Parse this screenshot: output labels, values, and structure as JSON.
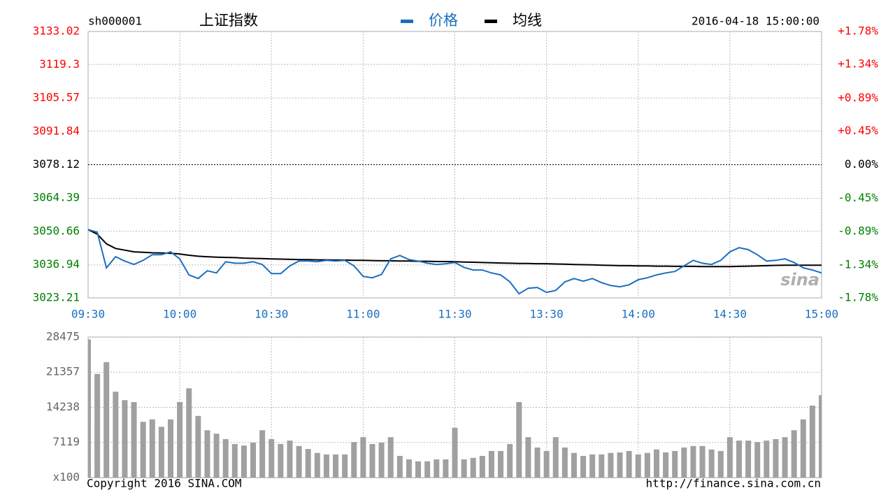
{
  "header": {
    "code": "sh000001",
    "name": "上证指数",
    "datetime": "2016-04-18 15:00:00"
  },
  "chart_data": [
    {
      "type": "line",
      "x": [
        0,
        3,
        6,
        9,
        12,
        15,
        18,
        21,
        24,
        27,
        30,
        33,
        36,
        39,
        42,
        45,
        48,
        51,
        54,
        57,
        60,
        63,
        66,
        69,
        72,
        75,
        78,
        81,
        84,
        87,
        90,
        93,
        96,
        99,
        102,
        105,
        108,
        111,
        114,
        117,
        120,
        123,
        126,
        129,
        132,
        135,
        138,
        141,
        144,
        147,
        150,
        153,
        156,
        159,
        162,
        165,
        168,
        171,
        174,
        177,
        180,
        183,
        186,
        189,
        192,
        195,
        198,
        201,
        204,
        207,
        210,
        213,
        216,
        219,
        222,
        225,
        228,
        231,
        234,
        237,
        240
      ],
      "xlim": [
        0,
        240
      ],
      "xticks": [
        {
          "value": 0,
          "label": "09:30"
        },
        {
          "value": 30,
          "label": "10:00"
        },
        {
          "value": 60,
          "label": "10:30"
        },
        {
          "value": 90,
          "label": "11:00"
        },
        {
          "value": 120,
          "label": "11:30"
        },
        {
          "value": 150,
          "label": "13:30"
        },
        {
          "value": 180,
          "label": "14:00"
        },
        {
          "value": 210,
          "label": "14:30"
        },
        {
          "value": 240,
          "label": "15:00"
        }
      ],
      "ylim": [
        3023.21,
        3133.02
      ],
      "yticks": [
        3023.21,
        3036.94,
        3050.66,
        3064.39,
        3078.12,
        3091.84,
        3105.57,
        3119.3,
        3133.02
      ],
      "y2lim": [
        -1.78,
        1.78
      ],
      "y2ticks": [
        {
          "value": -1.78,
          "label": "-1.78%"
        },
        {
          "value": -1.34,
          "label": "-1.34%"
        },
        {
          "value": -0.89,
          "label": "-0.89%"
        },
        {
          "value": -0.45,
          "label": "-0.45%"
        },
        {
          "value": 0,
          "label": "0.00%"
        },
        {
          "value": 0.45,
          "label": "+0.45%"
        },
        {
          "value": 0.89,
          "label": "+0.89%"
        },
        {
          "value": 1.34,
          "label": "+1.34%"
        },
        {
          "value": 1.78,
          "label": "+1.78%"
        }
      ],
      "up_color": "#ff0000",
      "down_color": "#008000",
      "grid": true,
      "watermark": "sina",
      "series": [
        {
          "name": "价格",
          "color": "#1a6fc0",
          "values": [
            3051.4,
            3050.3,
            3035.6,
            3040.2,
            3038.4,
            3037,
            3038.7,
            3041,
            3041,
            3042.2,
            3039.3,
            3032.7,
            3031.2,
            3034.4,
            3033.5,
            3038.1,
            3037.5,
            3037.5,
            3038.1,
            3037,
            3033.2,
            3033.2,
            3036.4,
            3038.4,
            3038.4,
            3038.1,
            3038.7,
            3038.4,
            3038.7,
            3036.4,
            3032.1,
            3031.5,
            3032.9,
            3039.3,
            3040.7,
            3039,
            3038.4,
            3037.5,
            3037,
            3037.3,
            3037.8,
            3035.8,
            3034.7,
            3034.7,
            3033.5,
            3032.7,
            3029.8,
            3024.9,
            3027.2,
            3027.5,
            3025.5,
            3026.3,
            3029.8,
            3031.2,
            3030.1,
            3031.2,
            3029.5,
            3028.3,
            3027.8,
            3028.6,
            3030.7,
            3031.5,
            3032.7,
            3033.5,
            3034.1,
            3036.4,
            3038.7,
            3037.5,
            3037,
            3038.7,
            3042.2,
            3043.9,
            3043.1,
            3041,
            3038.4,
            3038.7,
            3039.3,
            3037.8,
            3035.6,
            3034.7,
            3033.5
          ]
        },
        {
          "name": "均线",
          "color": "#000000",
          "values": [
            3051.4,
            3049.5,
            3045.5,
            3043.6,
            3042.9,
            3042.2,
            3042,
            3041.8,
            3041.7,
            3041.6,
            3041.3,
            3040.8,
            3040.4,
            3040.2,
            3040,
            3039.9,
            3039.8,
            3039.6,
            3039.5,
            3039.4,
            3039.3,
            3039.2,
            3039.1,
            3039,
            3039,
            3038.9,
            3038.9,
            3038.8,
            3038.8,
            3038.7,
            3038.7,
            3038.6,
            3038.5,
            3038.5,
            3038.4,
            3038.4,
            3038.3,
            3038.3,
            3038.2,
            3038.2,
            3038.1,
            3038,
            3037.9,
            3037.8,
            3037.7,
            3037.6,
            3037.5,
            3037.4,
            3037.4,
            3037.3,
            3037.3,
            3037.2,
            3037.1,
            3037,
            3036.9,
            3036.8,
            3036.7,
            3036.6,
            3036.5,
            3036.5,
            3036.4,
            3036.4,
            3036.3,
            3036.3,
            3036.2,
            3036.2,
            3036.2,
            3036.1,
            3036.1,
            3036.1,
            3036.1,
            3036.2,
            3036.3,
            3036.4,
            3036.5,
            3036.6,
            3036.7,
            3036.7,
            3036.7,
            3036.7,
            3036.7
          ]
        }
      ]
    },
    {
      "type": "bar",
      "x": [
        0,
        3,
        6,
        9,
        12,
        15,
        18,
        21,
        24,
        27,
        30,
        33,
        36,
        39,
        42,
        45,
        48,
        51,
        54,
        57,
        60,
        63,
        66,
        69,
        72,
        75,
        78,
        81,
        84,
        87,
        90,
        93,
        96,
        99,
        102,
        105,
        108,
        111,
        114,
        117,
        120,
        123,
        126,
        129,
        132,
        135,
        138,
        141,
        144,
        147,
        150,
        153,
        156,
        159,
        162,
        165,
        168,
        171,
        174,
        177,
        180,
        183,
        186,
        189,
        192,
        195,
        198,
        201,
        204,
        207,
        210,
        213,
        216,
        219,
        222,
        225,
        228,
        231,
        234,
        237,
        240
      ],
      "xlim": [
        0,
        240
      ],
      "xticks": [
        0,
        30,
        60,
        90,
        120,
        150,
        180,
        210,
        240
      ],
      "ylim": [
        0,
        28475
      ],
      "yticks": [
        7119,
        14238,
        21357,
        28475
      ],
      "unit": "x100",
      "color": "#a0a0a0",
      "grid": true,
      "values": [
        28000,
        21000,
        23400,
        17400,
        15700,
        15300,
        11300,
        11800,
        10300,
        11800,
        15300,
        18100,
        12500,
        9600,
        8900,
        7800,
        6800,
        6500,
        7100,
        9600,
        7800,
        6800,
        7500,
        6400,
        5800,
        5000,
        4700,
        4700,
        4700,
        7200,
        8200,
        6800,
        7100,
        8200,
        4400,
        3700,
        3300,
        3300,
        3700,
        3700,
        10100,
        3700,
        4000,
        4400,
        5400,
        5400,
        6800,
        15300,
        8200,
        6100,
        5400,
        8200,
        6100,
        5000,
        4400,
        4700,
        4700,
        5000,
        5100,
        5400,
        4700,
        5000,
        5700,
        5100,
        5400,
        6100,
        6400,
        6400,
        5700,
        5400,
        8200,
        7500,
        7500,
        7200,
        7500,
        7800,
        8200,
        9600,
        11800,
        14600,
        16700
      ]
    }
  ],
  "footer": {
    "copyright": "Copyright 2016 SINA.COM",
    "url": "http://finance.sina.com.cn"
  }
}
